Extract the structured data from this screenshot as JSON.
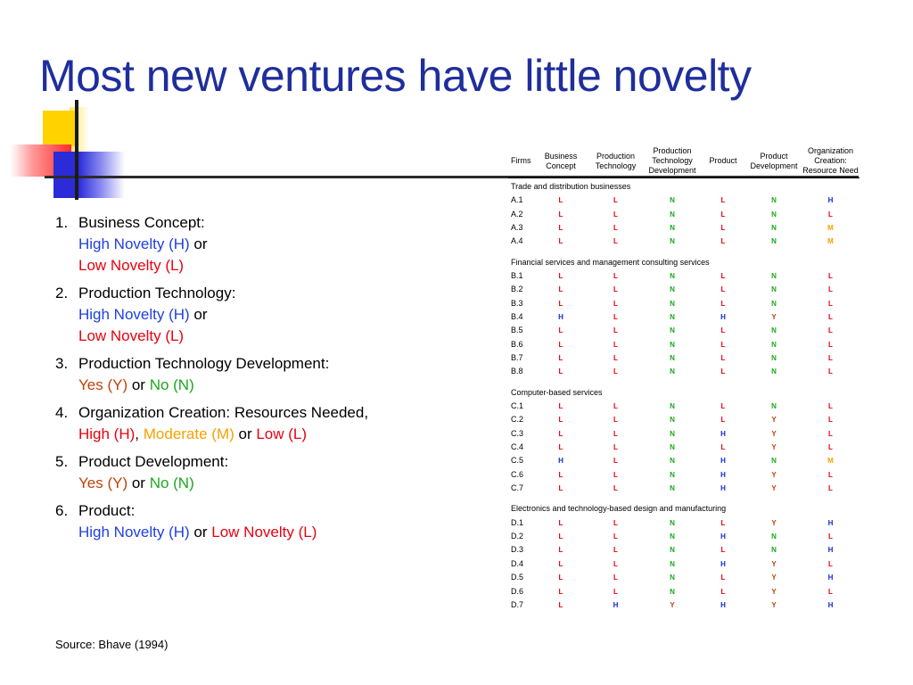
{
  "title": "Most new ventures have little novelty",
  "criteria": [
    {
      "num": "1.",
      "label": "Business Concept:",
      "opts": [
        {
          "text": "High Novelty (H)",
          "color": "blue"
        },
        {
          "text": " or",
          "color": "black"
        }
      ],
      "opts2": [
        {
          "text": "Low Novelty (L)",
          "color": "red"
        }
      ]
    },
    {
      "num": "2.",
      "label": "Production Technology:",
      "opts": [
        {
          "text": "High Novelty (H)",
          "color": "blue"
        },
        {
          "text": " or",
          "color": "black"
        }
      ],
      "opts2": [
        {
          "text": "Low Novelty (L)",
          "color": "red"
        }
      ]
    },
    {
      "num": "3.",
      "label": "Production Technology Development:",
      "opts": [
        {
          "text": "Yes (Y)",
          "color": "brown"
        },
        {
          "text": " or ",
          "color": "black"
        },
        {
          "text": "No (N)",
          "color": "green"
        }
      ],
      "opts2": []
    },
    {
      "num": "4.",
      "label": "Organization Creation: Resources Needed,",
      "opts": [
        {
          "text": "High (H)",
          "color": "red"
        },
        {
          "text": ", ",
          "color": "black"
        },
        {
          "text": "Moderate (M)",
          "color": "orange"
        },
        {
          "text": " or ",
          "color": "black"
        },
        {
          "text": "Low (L)",
          "color": "red"
        }
      ],
      "opts2": []
    },
    {
      "num": "5.",
      "label": "Product Development:",
      "opts": [
        {
          "text": "Yes (Y)",
          "color": "brown"
        },
        {
          "text": " or ",
          "color": "black"
        },
        {
          "text": "No (N)",
          "color": "green"
        }
      ],
      "opts2": []
    },
    {
      "num": "6.",
      "label": "Product:",
      "opts": [
        {
          "text": "High Novelty (H)",
          "color": "blue"
        },
        {
          "text": " or ",
          "color": "black"
        },
        {
          "text": "Low Novelty (L)",
          "color": "red"
        }
      ],
      "opts2": []
    }
  ],
  "source": "Source: Bhave (1994)",
  "table": {
    "headers": [
      "Firms",
      "Business Concept",
      "Production Technology",
      "Production Technology Development",
      "Product",
      "Product Development",
      "Organization Creation: Resource Need"
    ],
    "groups": [
      {
        "name": "Trade and distribution businesses",
        "rows": [
          [
            "A.1",
            "L",
            "L",
            "N",
            "L",
            "N",
            "H"
          ],
          [
            "A.2",
            "L",
            "L",
            "N",
            "L",
            "N",
            "L"
          ],
          [
            "A.3",
            "L",
            "L",
            "N",
            "L",
            "N",
            "M"
          ],
          [
            "A.4",
            "L",
            "L",
            "N",
            "L",
            "N",
            "M"
          ]
        ]
      },
      {
        "name": "Financial services and management consulting services",
        "rows": [
          [
            "B.1",
            "L",
            "L",
            "N",
            "L",
            "N",
            "L"
          ],
          [
            "B.2",
            "L",
            "L",
            "N",
            "L",
            "N",
            "L"
          ],
          [
            "B.3",
            "L",
            "L",
            "N",
            "L",
            "N",
            "L"
          ],
          [
            "B.4",
            "H",
            "L",
            "N",
            "H",
            "Y",
            "L"
          ],
          [
            "B.5",
            "L",
            "L",
            "N",
            "L",
            "N",
            "L"
          ],
          [
            "B.6",
            "L",
            "L",
            "N",
            "L",
            "N",
            "L"
          ],
          [
            "B.7",
            "L",
            "L",
            "N",
            "L",
            "N",
            "L"
          ],
          [
            "B.8",
            "L",
            "L",
            "N",
            "L",
            "N",
            "L"
          ]
        ]
      },
      {
        "name": "Computer-based services",
        "rows": [
          [
            "C.1",
            "L",
            "L",
            "N",
            "L",
            "N",
            "L"
          ],
          [
            "C.2",
            "L",
            "L",
            "N",
            "L",
            "Y",
            "L"
          ],
          [
            "C.3",
            "L",
            "L",
            "N",
            "H",
            "Y",
            "L"
          ],
          [
            "C.4",
            "L",
            "L",
            "N",
            "L",
            "Y",
            "L"
          ],
          [
            "C.5",
            "H",
            "L",
            "N",
            "H",
            "N",
            "M"
          ],
          [
            "C.6",
            "L",
            "L",
            "N",
            "H",
            "Y",
            "L"
          ],
          [
            "C.7",
            "L",
            "L",
            "N",
            "H",
            "Y",
            "L"
          ]
        ]
      },
      {
        "name": "Electronics and technology-based design and manufacturing",
        "rows": [
          [
            "D.1",
            "L",
            "L",
            "N",
            "L",
            "Y",
            "H"
          ],
          [
            "D.2",
            "L",
            "L",
            "N",
            "H",
            "N",
            "L"
          ],
          [
            "D.3",
            "L",
            "L",
            "N",
            "L",
            "N",
            "H"
          ],
          [
            "D.4",
            "L",
            "L",
            "N",
            "H",
            "Y",
            "L"
          ],
          [
            "D.5",
            "L",
            "L",
            "N",
            "L",
            "Y",
            "H"
          ],
          [
            "D.6",
            "L",
            "L",
            "N",
            "L",
            "Y",
            "L"
          ],
          [
            "D.7",
            "L",
            "H",
            "Y",
            "H",
            "Y",
            "H"
          ]
        ]
      }
    ]
  }
}
